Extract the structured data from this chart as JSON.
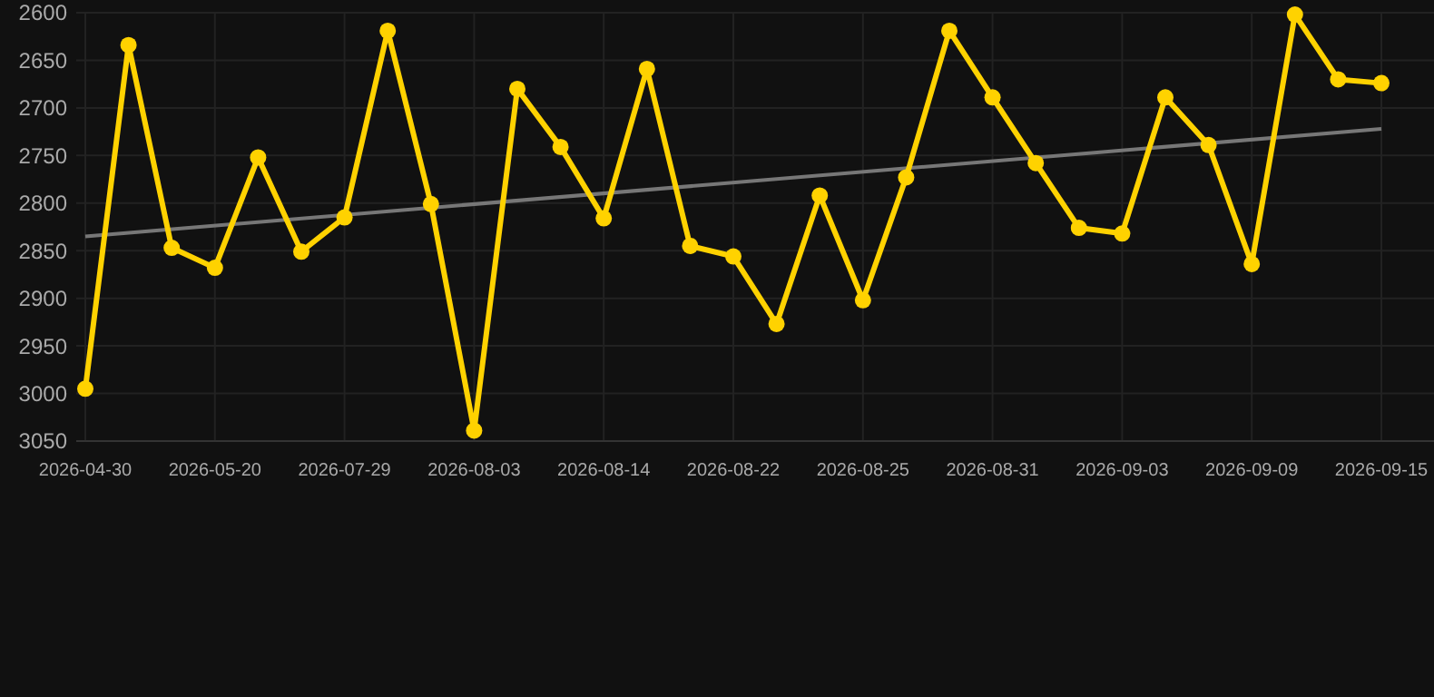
{
  "chart_data": {
    "type": "line",
    "categories": [
      "2026-04-30",
      null,
      null,
      "2026-05-20",
      null,
      null,
      "2026-07-29",
      null,
      null,
      "2026-08-03",
      null,
      null,
      "2026-08-14",
      null,
      null,
      "2026-08-22",
      null,
      null,
      "2026-08-25",
      null,
      null,
      "2026-08-31",
      null,
      null,
      "2026-09-03",
      null,
      null,
      "2026-09-09",
      null,
      null,
      "2026-09-15"
    ],
    "series": [
      {
        "color": "#ffd200",
        "marker": "circle",
        "values": [
          2995,
          2634,
          2847,
          2868,
          2752,
          2851,
          2815,
          2619,
          2801,
          3039,
          2680,
          2741,
          2816,
          2659,
          2845,
          2856,
          2927,
          2792,
          2902,
          2773,
          2619,
          2689,
          2758,
          2826,
          2832,
          2689,
          2739,
          2864,
          2602,
          2670,
          2674
        ]
      },
      {
        "color": "#777777",
        "marker": "none",
        "values": [
          2835,
          null,
          null,
          null,
          null,
          null,
          null,
          null,
          null,
          null,
          null,
          null,
          null,
          null,
          null,
          null,
          null,
          null,
          null,
          null,
          null,
          null,
          null,
          null,
          null,
          null,
          null,
          null,
          null,
          null,
          2722
        ]
      }
    ],
    "ylim": [
      3050,
      2600
    ],
    "yticks": [
      2600,
      2650,
      2700,
      2750,
      2800,
      2850,
      2900,
      2950,
      3000,
      3050
    ],
    "grid": true
  }
}
